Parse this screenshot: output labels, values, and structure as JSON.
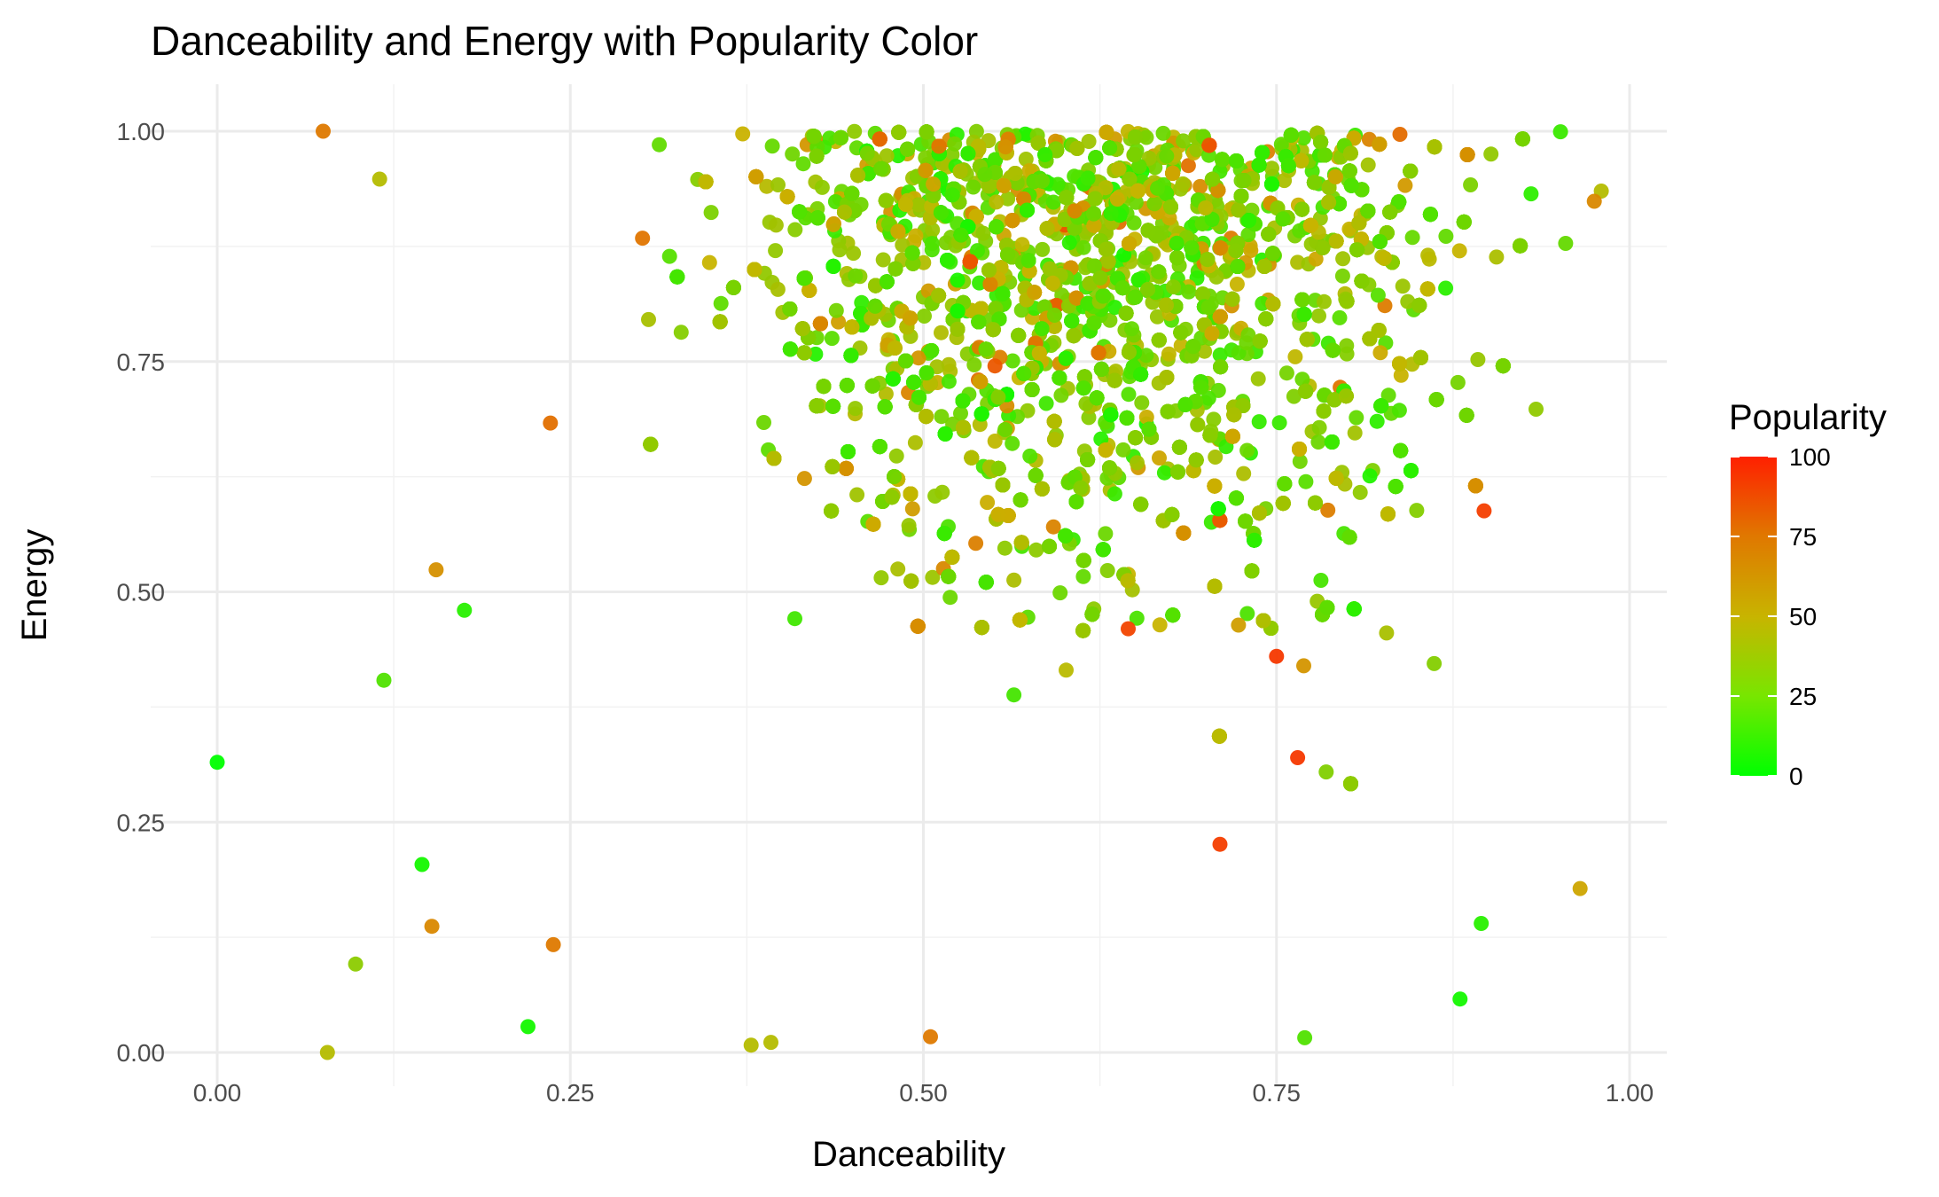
{
  "chart_data": {
    "type": "scatter",
    "title": "Danceability and Energy with Popularity Color",
    "xlabel": "Danceability",
    "ylabel": "Energy",
    "xlim": [
      0,
      1
    ],
    "ylim": [
      0,
      1
    ],
    "x_ticks": [
      "0.00",
      "0.25",
      "0.50",
      "0.75",
      "1.00"
    ],
    "y_ticks": [
      "0.00",
      "0.25",
      "0.50",
      "0.75",
      "1.00"
    ],
    "x_tick_values": [
      0,
      0.25,
      0.5,
      0.75,
      1
    ],
    "y_tick_values": [
      0,
      0.25,
      0.5,
      0.75,
      1
    ],
    "grid": true,
    "color_variable": "Popularity",
    "legend": {
      "title": "Popularity",
      "placement": "right",
      "type": "colorbar",
      "range": [
        0,
        100
      ],
      "breaks": [
        "0",
        "25",
        "50",
        "75",
        "100"
      ],
      "break_values": [
        0,
        25,
        50,
        75,
        100
      ],
      "low_color": "#00ff00",
      "mid_color": "#c8b400",
      "high_color": "#ff2000"
    },
    "series": [
      {
        "points": [
          {
            "x": 0.0,
            "y": 0.315,
            "popularity": 0
          },
          {
            "x": 0.075,
            "y": 1.0,
            "popularity": 70
          },
          {
            "x": 0.078,
            "y": 0.0,
            "popularity": 45
          },
          {
            "x": 0.098,
            "y": 0.096,
            "popularity": 35
          },
          {
            "x": 0.118,
            "y": 0.404,
            "popularity": 20
          },
          {
            "x": 0.115,
            "y": 0.948,
            "popularity": 45
          },
          {
            "x": 0.145,
            "y": 0.204,
            "popularity": 5
          },
          {
            "x": 0.152,
            "y": 0.137,
            "popularity": 65
          },
          {
            "x": 0.155,
            "y": 0.524,
            "popularity": 62
          },
          {
            "x": 0.175,
            "y": 0.48,
            "popularity": 10
          },
          {
            "x": 0.22,
            "y": 0.028,
            "popularity": 5
          },
          {
            "x": 0.238,
            "y": 0.117,
            "popularity": 70
          },
          {
            "x": 0.71,
            "y": 0.226,
            "popularity": 90
          },
          {
            "x": 0.765,
            "y": 0.32,
            "popularity": 92
          },
          {
            "x": 0.77,
            "y": 0.016,
            "popularity": 20
          },
          {
            "x": 0.88,
            "y": 0.058,
            "popularity": 5
          },
          {
            "x": 0.895,
            "y": 0.14,
            "popularity": 10
          },
          {
            "x": 0.897,
            "y": 0.588,
            "popularity": 90
          },
          {
            "x": 0.965,
            "y": 0.178,
            "popularity": 55
          },
          {
            "x": 0.98,
            "y": 0.935,
            "popularity": 45
          },
          {
            "x": 0.975,
            "y": 0.924,
            "popularity": 65
          },
          {
            "x": 0.505,
            "y": 0.017,
            "popularity": 70
          },
          {
            "x": 0.378,
            "y": 0.008,
            "popularity": 45
          },
          {
            "x": 0.392,
            "y": 0.011,
            "popularity": 45
          },
          {
            "x": 0.645,
            "y": 0.46,
            "popularity": 88
          },
          {
            "x": 0.75,
            "y": 0.43,
            "popularity": 92
          }
        ]
      }
    ]
  }
}
